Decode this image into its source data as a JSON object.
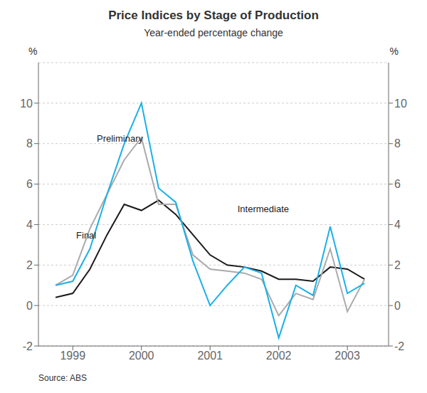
{
  "chart_data": {
    "type": "line",
    "title": "Price Indices by Stage of Production",
    "subtitle": "Year-ended percentage change",
    "source": "Source: ABS",
    "ylabel": "%",
    "y2label": "%",
    "x": [
      1998.75,
      1999.0,
      1999.25,
      1999.5,
      1999.75,
      2000.0,
      2000.25,
      2000.5,
      2000.75,
      2001.0,
      2001.25,
      2001.5,
      2001.75,
      2002.0,
      2002.25,
      2002.5,
      2002.75,
      2003.0,
      2003.25
    ],
    "xlim": [
      1998.5,
      2003.6
    ],
    "xticks": [
      1999,
      2000,
      2001,
      2002,
      2003
    ],
    "ylim": [
      -2,
      12
    ],
    "yticks": [
      -2,
      0,
      2,
      4,
      6,
      8,
      10
    ],
    "y2lim": [
      -2,
      12
    ],
    "y2ticks": [
      -2,
      0,
      2,
      4,
      6,
      8,
      10
    ],
    "grid": true,
    "series": [
      {
        "name": "Final",
        "color": "#1a1a1a",
        "values": [
          0.4,
          0.6,
          1.8,
          3.5,
          5.0,
          4.7,
          5.2,
          4.5,
          3.5,
          2.5,
          2.0,
          1.9,
          1.7,
          1.3,
          1.3,
          1.2,
          1.9,
          1.8,
          1.3
        ]
      },
      {
        "name": "Intermediate",
        "color": "#aaaaaa",
        "values": [
          1.0,
          1.5,
          3.8,
          5.5,
          7.2,
          8.3,
          5.0,
          5.0,
          2.5,
          1.8,
          1.7,
          1.6,
          1.3,
          -0.5,
          0.6,
          0.3,
          2.8,
          -0.3,
          1.3
        ]
      },
      {
        "name": "Preliminary",
        "color": "#1ab0e8",
        "values": [
          1.0,
          1.2,
          2.8,
          5.5,
          8.0,
          10.0,
          5.8,
          5.1,
          2.2,
          0.0,
          1.0,
          1.9,
          1.6,
          -1.6,
          1.0,
          0.5,
          3.9,
          0.6,
          1.1
        ]
      }
    ],
    "annotations": [
      {
        "text": "Preliminary",
        "x": 1999.35,
        "y": 8.0
      },
      {
        "text": "Intermediate",
        "x": 2001.4,
        "y": 4.5
      },
      {
        "text": "Final",
        "x": 1999.05,
        "y": 3.2
      }
    ]
  }
}
